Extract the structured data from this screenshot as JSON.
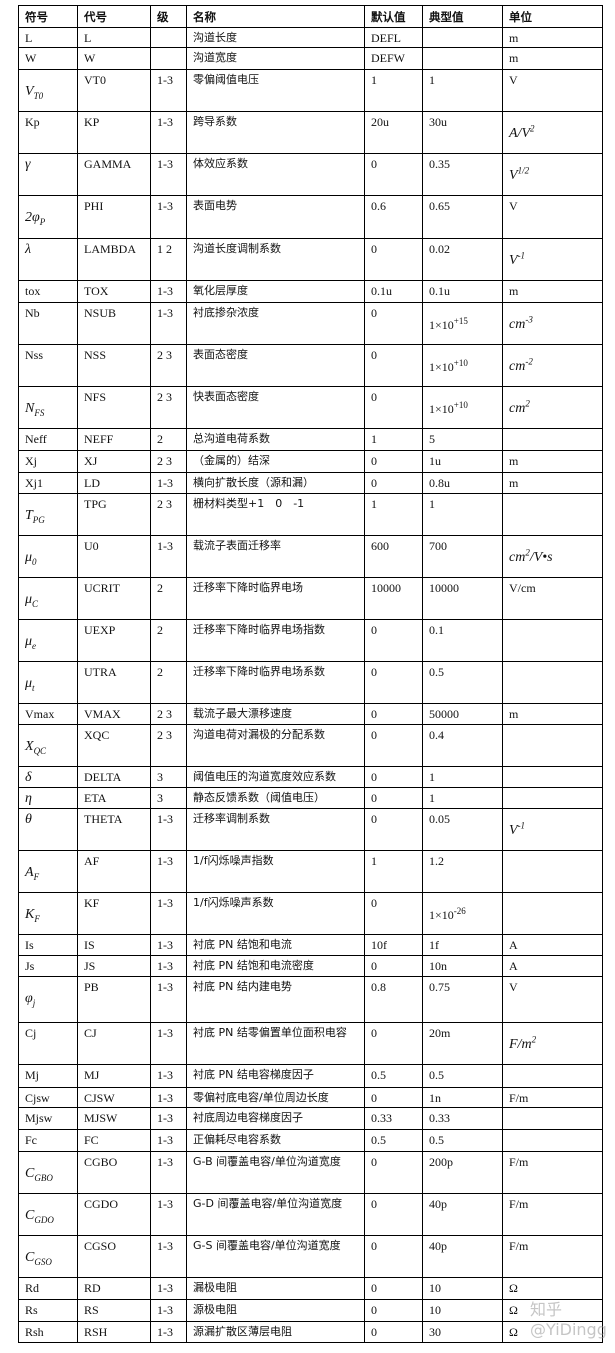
{
  "header": [
    "符号",
    "代号",
    "级",
    "名称",
    "默认值",
    "典型值",
    "单位"
  ],
  "rows": [
    [
      "L",
      "L",
      "",
      "沟道长度",
      "DEFL",
      "",
      "m"
    ],
    [
      "W",
      "W",
      "",
      "沟道宽度",
      "DEFW",
      "",
      "m"
    ],
    [
      {
        "m": "V",
        "sub": "T0",
        "it": true
      },
      "VT0",
      "1-3",
      "零偏阈值电压",
      "1",
      "1",
      "V"
    ],
    [
      "Kp",
      "KP",
      "1-3",
      "跨导系数",
      "20u",
      "30u",
      {
        "m": "A/V",
        "sup": "2",
        "it": true
      }
    ],
    [
      {
        "m": "γ",
        "it": true
      },
      "GAMMA",
      "1-3",
      "体效应系数",
      "0",
      "0.35",
      {
        "m": "V",
        "sup": "1/2",
        "it": true
      }
    ],
    [
      {
        "m": "2φ",
        "sub": "P",
        "it": true
      },
      "PHI",
      "1-3",
      "表面电势",
      "0.6",
      "0.65",
      "V"
    ],
    [
      {
        "m": "λ",
        "it": true
      },
      "LAMBDA",
      "1 2",
      "沟道长度调制系数",
      "0",
      "0.02",
      {
        "m": "V",
        "sup": "-1",
        "it": true
      }
    ],
    [
      "tox",
      "TOX",
      "1-3",
      "氧化层厚度",
      "0.1u",
      "0.1u",
      "m"
    ],
    [
      "Nb",
      "NSUB",
      "1-3",
      "衬底掺杂浓度",
      "0",
      {
        "m": "1×10",
        "sup": "+15"
      },
      {
        "m": "cm",
        "sup": "-3",
        "it": true
      }
    ],
    [
      "Nss",
      "NSS",
      "2 3",
      "表面态密度",
      "0",
      {
        "m": "1×10",
        "sup": "+10"
      },
      {
        "m": "cm",
        "sup": "-2",
        "it": true
      }
    ],
    [
      {
        "m": "N",
        "sub": "FS",
        "it": true
      },
      "NFS",
      "2 3",
      "快表面态密度",
      "0",
      {
        "m": "1×10",
        "sup": "+10"
      },
      {
        "m": "cm",
        "sup": "2",
        "it": true
      }
    ],
    [
      "Neff",
      "NEFF",
      "2",
      "总沟道电荷系数",
      "1",
      "5",
      ""
    ],
    [
      "Xj",
      "XJ",
      "2 3",
      "（金属的）结深",
      "0",
      "1u",
      "m"
    ],
    [
      "Xj1",
      "LD",
      "1-3",
      "横向扩散长度（源和漏）",
      "0",
      "0.8u",
      "m"
    ],
    [
      {
        "m": "T",
        "sub": "PG",
        "it": true
      },
      "TPG",
      "2 3",
      "栅材料类型+1　0　-1",
      "1",
      "1",
      ""
    ],
    [
      {
        "m": "μ",
        "sub": "0",
        "it": true
      },
      "U0",
      "1-3",
      "载流子表面迁移率",
      "600",
      "700",
      {
        "m": "cm",
        "sup": "2",
        "tail": "/V•s",
        "it": true
      }
    ],
    [
      {
        "m": "μ",
        "sub": "C",
        "it": true
      },
      "UCRIT",
      "2",
      "迁移率下降时临界电场",
      "10000",
      "10000",
      "V/cm"
    ],
    [
      {
        "m": "μ",
        "sub": "e",
        "it": true
      },
      "UEXP",
      "2",
      "迁移率下降时临界电场指数",
      "0",
      "0.1",
      ""
    ],
    [
      {
        "m": "μ",
        "sub": "t",
        "it": true
      },
      "UTRA",
      "2",
      "迁移率下降时临界电场系数",
      "0",
      "0.5",
      ""
    ],
    [
      "Vmax",
      "VMAX",
      "2 3",
      "载流子最大漂移速度",
      "0",
      "50000",
      "m"
    ],
    [
      {
        "m": "X",
        "sub": "QC",
        "it": true
      },
      "XQC",
      "2 3",
      "沟道电荷对漏极的分配系数",
      "0",
      "0.4",
      ""
    ],
    [
      {
        "m": "δ",
        "it": true
      },
      "DELTA",
      "3",
      "阈值电压的沟道宽度效应系数",
      "0",
      "1",
      ""
    ],
    [
      {
        "m": "η",
        "it": true
      },
      "ETA",
      "3",
      "静态反馈系数（阈值电压）",
      "0",
      "1",
      ""
    ],
    [
      {
        "m": "θ",
        "it": true
      },
      "THETA",
      "1-3",
      "迁移率调制系数",
      "0",
      "0.05",
      {
        "m": "V",
        "sup": "-1",
        "it": true
      }
    ],
    [
      {
        "m": "A",
        "sub": "F",
        "it": true
      },
      "AF",
      "1-3",
      "1/f闪烁噪声指数",
      "1",
      "1.2",
      ""
    ],
    [
      {
        "m": "K",
        "sub": "F",
        "it": true
      },
      "KF",
      "1-3",
      "1/f闪烁噪声系数",
      "0",
      {
        "m": "1×10",
        "sup": "-26"
      },
      ""
    ],
    [
      "Is",
      "IS",
      "1-3",
      "衬底 PN 结饱和电流",
      "10f",
      "1f",
      "A"
    ],
    [
      "Js",
      "JS",
      "1-3",
      "衬底 PN 结饱和电流密度",
      "0",
      "10n",
      "A"
    ],
    [
      {
        "m": "φ",
        "sub": "j",
        "it": true
      },
      "PB",
      "1-3",
      "衬底 PN 结内建电势",
      "0.8",
      "0.75",
      "V"
    ],
    [
      "Cj",
      "CJ",
      "1-3",
      "衬底  PN  结零偏置单位面积电容",
      "0",
      "20m",
      {
        "m": "F/m",
        "sup": "2",
        "it": true
      }
    ],
    [
      "Mj",
      "MJ",
      "1-3",
      "衬底 PN 结电容梯度因子",
      "0.5",
      "0.5",
      ""
    ],
    [
      "Cjsw",
      "CJSW",
      "1-3",
      "零偏衬底电容/单位周边长度",
      "0",
      "1n",
      "F/m"
    ],
    [
      "Mjsw",
      "MJSW",
      "1-3",
      "衬底周边电容梯度因子",
      "0.33",
      "0.33",
      ""
    ],
    [
      "Fc",
      "FC",
      "1-3",
      "正偏耗尽电容系数",
      "0.5",
      "0.5",
      ""
    ],
    [
      {
        "m": "C",
        "sub": "GBO",
        "it": true
      },
      "CGBO",
      "1-3",
      "G-B 间覆盖电容/单位沟道宽度",
      "0",
      "200p",
      "F/m"
    ],
    [
      {
        "m": "C",
        "sub": "GDO",
        "it": true
      },
      "CGDO",
      "1-3",
      "G-D 间覆盖电容/单位沟道宽度",
      "0",
      "40p",
      "F/m"
    ],
    [
      {
        "m": "C",
        "sub": "GSO",
        "it": true
      },
      "CGSO",
      "1-3",
      "G-S 间覆盖电容/单位沟道宽度",
      "0",
      "40p",
      "F/m"
    ],
    [
      "Rd",
      "RD",
      "1-3",
      "漏极电阻",
      "0",
      "10",
      "Ω"
    ],
    [
      "Rs",
      "RS",
      "1-3",
      "源极电阻",
      "0",
      "10",
      "Ω"
    ],
    [
      "Rsh",
      "RSH",
      "1-3",
      "源漏扩散区薄层电阻",
      "0",
      "30",
      "Ω"
    ]
  ],
  "watermark": "知乎 @YiDingg"
}
